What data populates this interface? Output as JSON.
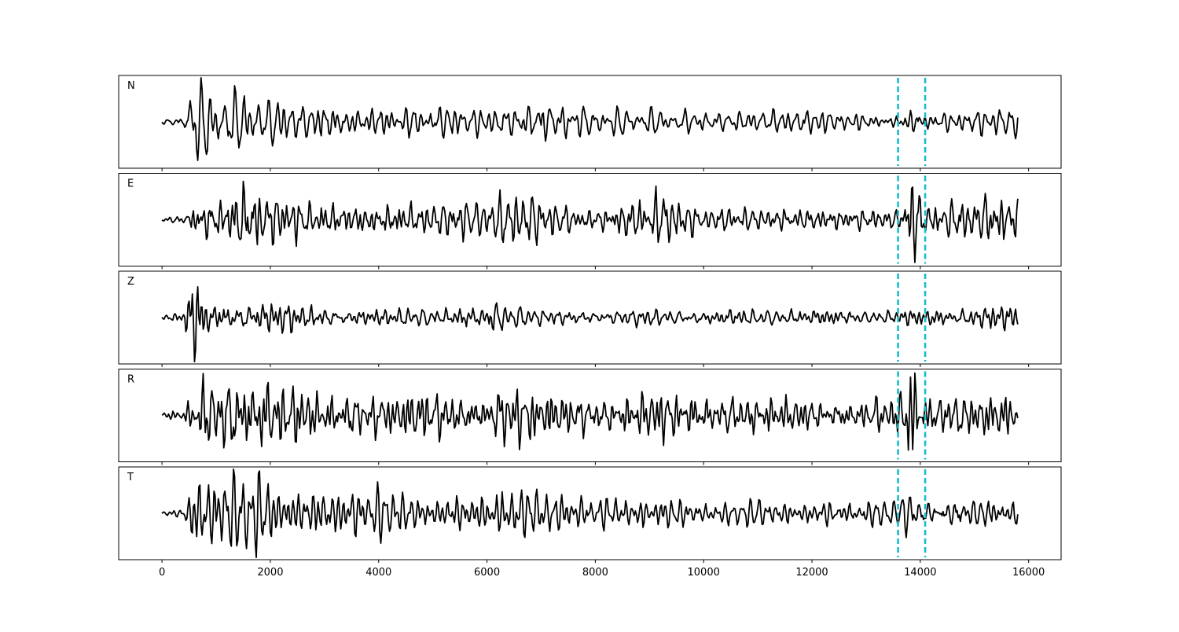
{
  "chart_data": {
    "type": "line",
    "title": "",
    "xlabel": "",
    "ylabel": "",
    "xlim": [
      -800,
      16600
    ],
    "ylim": [
      -1.15,
      1.15
    ],
    "x_ticks": [
      0,
      2000,
      4000,
      6000,
      8000,
      10000,
      12000,
      14000,
      16000
    ],
    "x_tick_labels": [
      "0",
      "2000",
      "4000",
      "6000",
      "8000",
      "10000",
      "12000",
      "14000",
      "16000"
    ],
    "grid": false,
    "line_color": "#000000",
    "marker_color": "#17becf",
    "markers": [
      13590,
      14090
    ],
    "sample_step": 20,
    "trace_end": 15800,
    "panels": [
      {
        "label": "N",
        "seed": 11,
        "envelope": [
          [
            0,
            0.05
          ],
          [
            400,
            0.08
          ],
          [
            600,
            0.95
          ],
          [
            1000,
            0.6
          ],
          [
            1800,
            0.45
          ],
          [
            2800,
            0.4
          ],
          [
            4000,
            0.35
          ],
          [
            6000,
            0.3
          ],
          [
            7000,
            0.45
          ],
          [
            8000,
            0.25
          ],
          [
            10000,
            0.2
          ],
          [
            12000,
            0.25
          ],
          [
            13600,
            0.15
          ],
          [
            13900,
            0.35
          ],
          [
            14200,
            0.2
          ],
          [
            15000,
            0.25
          ],
          [
            15800,
            0.3
          ]
        ]
      },
      {
        "label": "E",
        "seed": 23,
        "envelope": [
          [
            0,
            0.05
          ],
          [
            400,
            0.08
          ],
          [
            600,
            0.35
          ],
          [
            1000,
            0.4
          ],
          [
            1600,
            0.75
          ],
          [
            2000,
            0.55
          ],
          [
            3000,
            0.35
          ],
          [
            4000,
            0.3
          ],
          [
            6000,
            0.35
          ],
          [
            6500,
            0.5
          ],
          [
            8000,
            0.2
          ],
          [
            9200,
            0.55
          ],
          [
            10000,
            0.2
          ],
          [
            12000,
            0.25
          ],
          [
            13600,
            0.2
          ],
          [
            13850,
            1.0
          ],
          [
            14100,
            0.25
          ],
          [
            15000,
            0.5
          ],
          [
            15800,
            0.45
          ]
        ]
      },
      {
        "label": "Z",
        "seed": 37,
        "envelope": [
          [
            0,
            0.05
          ],
          [
            400,
            0.1
          ],
          [
            600,
            1.0
          ],
          [
            800,
            0.35
          ],
          [
            1500,
            0.35
          ],
          [
            3000,
            0.25
          ],
          [
            4000,
            0.2
          ],
          [
            6000,
            0.3
          ],
          [
            6100,
            0.45
          ],
          [
            7000,
            0.2
          ],
          [
            9000,
            0.2
          ],
          [
            12000,
            0.2
          ],
          [
            13600,
            0.15
          ],
          [
            14000,
            0.2
          ],
          [
            15000,
            0.25
          ],
          [
            15800,
            0.25
          ]
        ]
      },
      {
        "label": "R",
        "seed": 41,
        "envelope": [
          [
            0,
            0.05
          ],
          [
            400,
            0.1
          ],
          [
            700,
            0.55
          ],
          [
            1500,
            0.8
          ],
          [
            2000,
            0.55
          ],
          [
            3000,
            0.4
          ],
          [
            6000,
            0.35
          ],
          [
            6300,
            0.5
          ],
          [
            8000,
            0.3
          ],
          [
            9200,
            0.4
          ],
          [
            12000,
            0.25
          ],
          [
            13600,
            0.3
          ],
          [
            13800,
            1.0
          ],
          [
            14100,
            0.3
          ],
          [
            15000,
            0.45
          ],
          [
            15800,
            0.35
          ]
        ]
      },
      {
        "label": "T",
        "seed": 53,
        "envelope": [
          [
            0,
            0.05
          ],
          [
            400,
            0.1
          ],
          [
            650,
            1.0
          ],
          [
            1100,
            0.75
          ],
          [
            1700,
            0.85
          ],
          [
            2500,
            0.55
          ],
          [
            4000,
            0.5
          ],
          [
            5000,
            0.3
          ],
          [
            6500,
            0.55
          ],
          [
            8000,
            0.35
          ],
          [
            9200,
            0.4
          ],
          [
            10000,
            0.25
          ],
          [
            12000,
            0.35
          ],
          [
            13600,
            0.3
          ],
          [
            13850,
            0.6
          ],
          [
            14200,
            0.3
          ],
          [
            15500,
            0.55
          ],
          [
            15800,
            0.45
          ]
        ]
      }
    ]
  }
}
